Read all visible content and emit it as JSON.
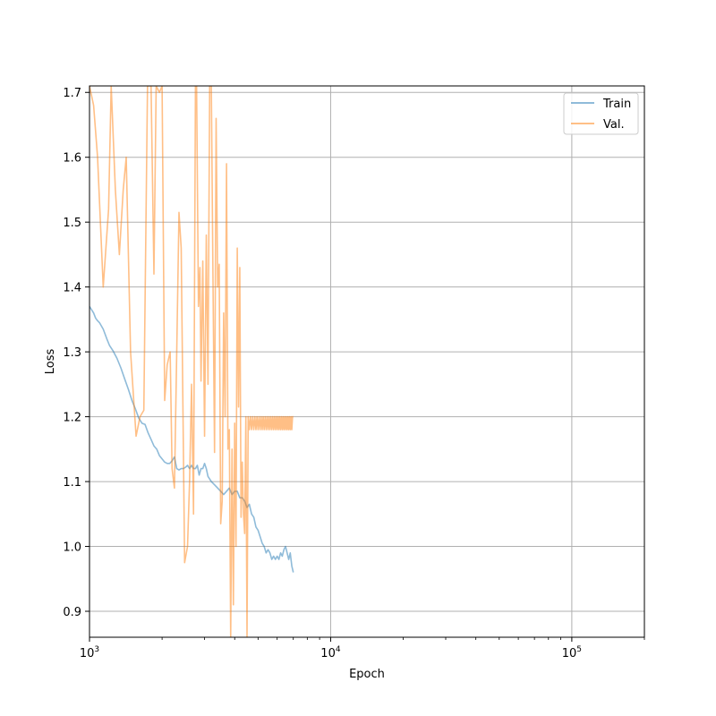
{
  "chart_data": {
    "type": "line",
    "xlabel": "Epoch",
    "ylabel": "Loss",
    "xscale": "log",
    "xlim": [
      1000,
      200000
    ],
    "ylim": [
      0.86,
      1.71
    ],
    "grid": true,
    "legend_position": "top-right",
    "x_ticks": [
      {
        "value": 1000,
        "base": "10",
        "exp": "3"
      },
      {
        "value": 10000,
        "base": "10",
        "exp": "4"
      },
      {
        "value": 100000,
        "base": "10",
        "exp": "5"
      }
    ],
    "y_ticks": [
      {
        "value": 0.9,
        "label": "0.9"
      },
      {
        "value": 1.0,
        "label": "1.0"
      },
      {
        "value": 1.1,
        "label": "1.1"
      },
      {
        "value": 1.2,
        "label": "1.2"
      },
      {
        "value": 1.3,
        "label": "1.3"
      },
      {
        "value": 1.4,
        "label": "1.4"
      },
      {
        "value": 1.5,
        "label": "1.5"
      },
      {
        "value": 1.6,
        "label": "1.6"
      },
      {
        "value": 1.7,
        "label": "1.7"
      }
    ],
    "series": [
      {
        "name": "Train",
        "color": "#1f77b4",
        "x": [
          1000,
          1020,
          1040,
          1060,
          1080,
          1100,
          1140,
          1180,
          1210,
          1250,
          1300,
          1350,
          1400,
          1450,
          1500,
          1550,
          1600,
          1650,
          1700,
          1750,
          1800,
          1850,
          1900,
          1950,
          2000,
          2050,
          2100,
          2150,
          2200,
          2250,
          2300,
          2350,
          2400,
          2450,
          2500,
          2550,
          2600,
          2650,
          2700,
          2750,
          2800,
          2850,
          2900,
          2950,
          3000,
          3050,
          3100,
          3200,
          3300,
          3400,
          3500,
          3600,
          3700,
          3800,
          3900,
          4000,
          4100,
          4200,
          4300,
          4400,
          4500,
          4600,
          4700,
          4800,
          4900,
          5000,
          5100,
          5200,
          5300,
          5400,
          5500,
          5600,
          5700,
          5800,
          5900,
          6000,
          6100,
          6200,
          6300,
          6400,
          6500,
          6600,
          6700,
          6800,
          6900,
          7000
        ],
        "y": [
          1.37,
          1.365,
          1.36,
          1.352,
          1.348,
          1.345,
          1.335,
          1.32,
          1.31,
          1.302,
          1.29,
          1.275,
          1.258,
          1.242,
          1.225,
          1.212,
          1.198,
          1.19,
          1.188,
          1.175,
          1.165,
          1.155,
          1.15,
          1.14,
          1.135,
          1.13,
          1.128,
          1.128,
          1.132,
          1.138,
          1.12,
          1.118,
          1.12,
          1.12,
          1.122,
          1.125,
          1.12,
          1.125,
          1.12,
          1.12,
          1.125,
          1.11,
          1.12,
          1.12,
          1.128,
          1.12,
          1.108,
          1.1,
          1.095,
          1.09,
          1.085,
          1.08,
          1.085,
          1.09,
          1.08,
          1.085,
          1.085,
          1.075,
          1.075,
          1.07,
          1.06,
          1.065,
          1.05,
          1.045,
          1.03,
          1.025,
          1.015,
          1.005,
          1.0,
          0.99,
          0.995,
          0.99,
          0.98,
          0.985,
          0.98,
          0.985,
          0.98,
          0.99,
          0.985,
          0.995,
          1.0,
          0.99,
          0.98,
          0.99,
          0.97,
          0.96
        ]
      },
      {
        "name": "Val.",
        "color": "#ff7f0e",
        "x": [
          1000,
          1040,
          1080,
          1140,
          1200,
          1230,
          1280,
          1330,
          1380,
          1420,
          1480,
          1560,
          1620,
          1680,
          1740,
          1800,
          1850,
          1890,
          1950,
          2000,
          2050,
          2100,
          2160,
          2200,
          2250,
          2300,
          2350,
          2400,
          2480,
          2550,
          2600,
          2650,
          2700,
          2750,
          2780,
          2830,
          2870,
          2900,
          2950,
          3000,
          3050,
          3100,
          3150,
          3200,
          3250,
          3300,
          3350,
          3400,
          3450,
          3500,
          3550,
          3600,
          3650,
          3700,
          3750,
          3800,
          3850,
          3900,
          3950,
          4000,
          4050,
          4100,
          4150,
          4200,
          4250,
          4300,
          4350,
          4400,
          4450,
          4500,
          4550,
          4600,
          4650,
          4700,
          4750,
          4800,
          4850,
          4900,
          4950,
          5000,
          5050,
          5100,
          5150,
          5200,
          5250,
          5300,
          5350,
          5400,
          5450,
          5500,
          5550,
          5600,
          5650,
          5700,
          5750,
          5800,
          5850,
          5900,
          5950,
          6000,
          6050,
          6100,
          6150,
          6200,
          6250,
          6300,
          6350,
          6400,
          6450,
          6500,
          6550,
          6600,
          6650,
          6700,
          6750,
          6800,
          6850,
          6900,
          6950,
          7000
        ],
        "y": [
          1.71,
          1.68,
          1.6,
          1.4,
          1.52,
          1.71,
          1.55,
          1.45,
          1.55,
          1.6,
          1.3,
          1.17,
          1.2,
          1.21,
          1.71,
          1.71,
          1.42,
          1.71,
          1.7,
          1.71,
          1.225,
          1.28,
          1.3,
          1.12,
          1.09,
          1.3,
          1.515,
          1.46,
          0.975,
          1.0,
          1.1,
          1.25,
          1.05,
          1.71,
          1.71,
          1.37,
          1.43,
          1.255,
          1.44,
          1.17,
          1.48,
          1.25,
          1.71,
          1.71,
          1.42,
          1.145,
          1.66,
          1.4,
          1.435,
          1.035,
          1.07,
          1.36,
          1.2,
          1.59,
          1.15,
          1.18,
          0.86,
          1.15,
          0.91,
          1.19,
          1.0,
          1.46,
          1.215,
          1.43,
          1.045,
          1.13,
          1.05,
          1.02,
          1.2,
          0.86,
          1.2,
          1.18,
          1.2,
          1.18,
          1.2,
          1.18,
          1.2,
          1.18,
          1.2,
          1.18,
          1.2,
          1.18,
          1.2,
          1.18,
          1.2,
          1.18,
          1.2,
          1.18,
          1.2,
          1.18,
          1.2,
          1.18,
          1.2,
          1.18,
          1.2,
          1.18,
          1.2,
          1.18,
          1.2,
          1.18,
          1.2,
          1.18,
          1.2,
          1.18,
          1.2,
          1.18,
          1.2,
          1.18,
          1.2,
          1.18,
          1.2,
          1.18,
          1.2,
          1.18,
          1.2,
          1.18,
          1.2,
          1.18,
          1.2,
          1.2
        ]
      }
    ]
  }
}
